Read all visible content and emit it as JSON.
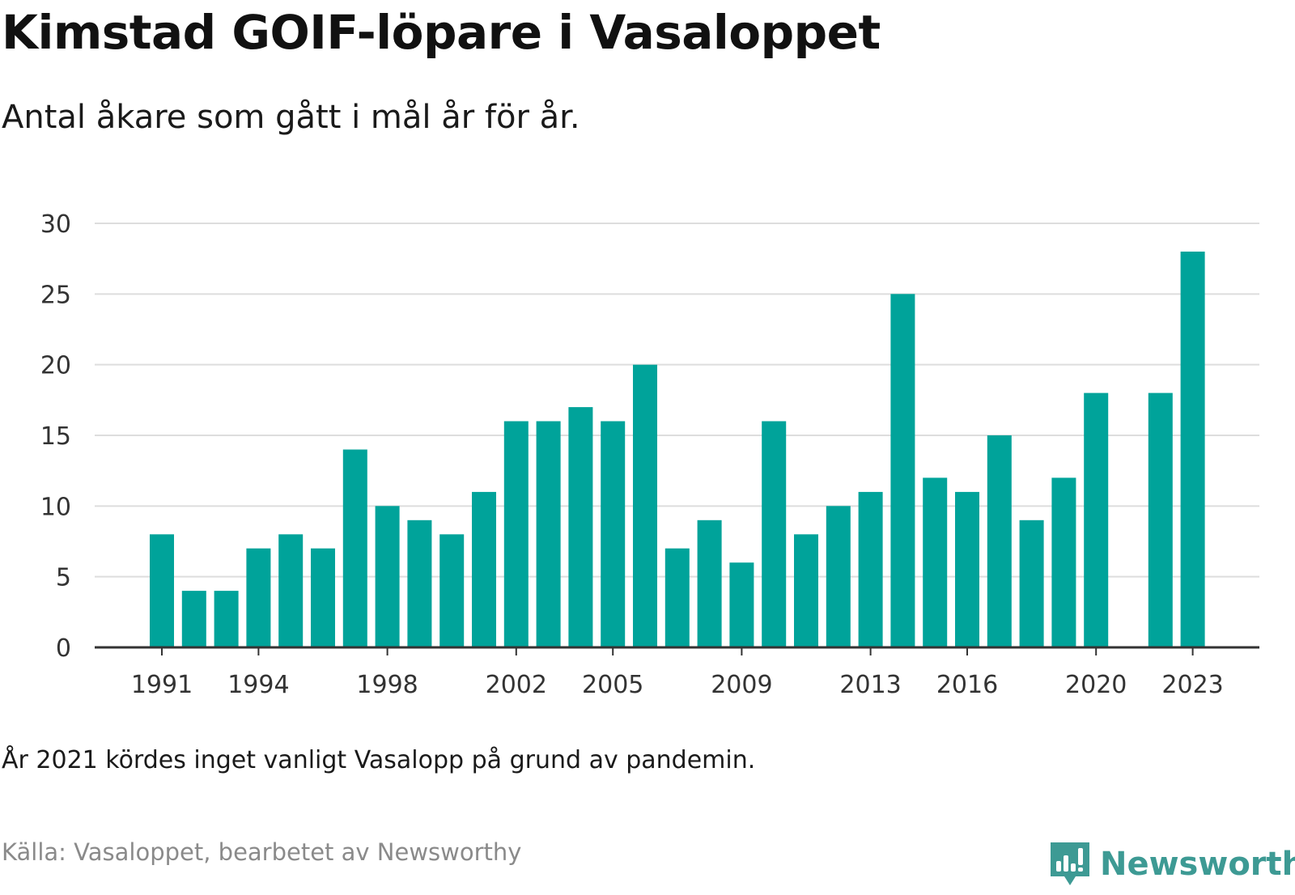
{
  "title": "Kimstad GOIF-löpare i Vasaloppet",
  "subtitle": "Antal åkare som gått i mål år för år.",
  "note": "År 2021 kördes inget vanligt Vasalopp på grund av pandemin.",
  "source": "Källa: Vasaloppet, bearbetet av Newsworthy",
  "brand": {
    "name": "Newsworthy",
    "color": "#3d9a94",
    "icon": "newsworthy-logo-icon"
  },
  "colors": {
    "bar": "#00a39a",
    "grid": "#dddddd",
    "axis": "#333333",
    "text": "#333333"
  },
  "chart_data": {
    "type": "bar",
    "title": "Kimstad GOIF-löpare i Vasaloppet",
    "categories": [
      1991,
      1992,
      1993,
      1994,
      1995,
      1996,
      1997,
      1998,
      1999,
      2000,
      2001,
      2002,
      2003,
      2004,
      2005,
      2006,
      2007,
      2008,
      2009,
      2010,
      2011,
      2012,
      2013,
      2014,
      2015,
      2016,
      2017,
      2018,
      2019,
      2020,
      2021,
      2022,
      2023
    ],
    "values": [
      8,
      4,
      4,
      7,
      8,
      7,
      14,
      10,
      9,
      8,
      11,
      16,
      16,
      17,
      16,
      20,
      7,
      9,
      6,
      16,
      8,
      10,
      11,
      25,
      12,
      11,
      15,
      9,
      12,
      18,
      null,
      18,
      28
    ],
    "x_tick_labels": [
      "1991",
      "1994",
      "1998",
      "2002",
      "2005",
      "2009",
      "2013",
      "2016",
      "2020",
      "2023"
    ],
    "y_ticks": [
      0,
      5,
      10,
      15,
      20,
      25,
      30
    ],
    "ylim": [
      0,
      30
    ],
    "xlabel": "",
    "ylabel": "",
    "grid": true,
    "legend": "none"
  }
}
